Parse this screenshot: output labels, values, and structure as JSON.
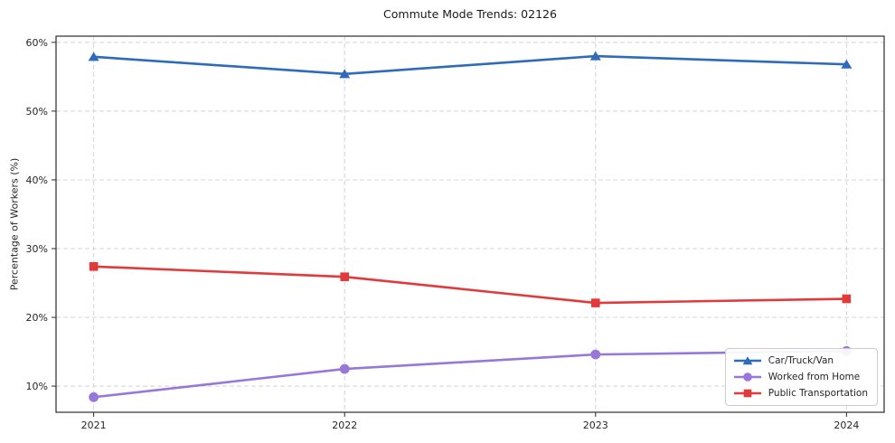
{
  "figure": {
    "title": "Commute Mode Trends: 02126",
    "ylabel": "Percentage of Workers (%)"
  },
  "chart_data": {
    "type": "line",
    "title": "Commute Mode Trends: 02126",
    "xlabel": "",
    "ylabel": "Percentage of Workers (%)",
    "categories": [
      "2021",
      "2022",
      "2023",
      "2024"
    ],
    "series": [
      {
        "name": "Car/Truck/Van",
        "color": "#2e6bbb",
        "marker": "triangle",
        "values": [
          57.9,
          55.4,
          58.0,
          56.8
        ]
      },
      {
        "name": "Worked from Home",
        "color": "#9777d8",
        "marker": "circle",
        "values": [
          8.4,
          12.5,
          14.6,
          15.1
        ]
      },
      {
        "name": "Public Transportation",
        "color": "#e23a3a",
        "marker": "square",
        "values": [
          27.4,
          25.9,
          22.1,
          22.7
        ]
      }
    ],
    "ylim": [
      6.2,
      60.9
    ],
    "yticks": [
      10,
      20,
      30,
      40,
      50,
      60
    ],
    "ytick_suffix": "%",
    "grid": true,
    "grid_style": "dashed",
    "legend_position": "lower right",
    "x_margin": 0.15
  },
  "style": {
    "grid_color": "#d4d4d4",
    "spine_color": "#2b2b2b",
    "tick_color": "#2b2b2b",
    "tick_label_color": "#262626",
    "line_width": 2.6
  }
}
